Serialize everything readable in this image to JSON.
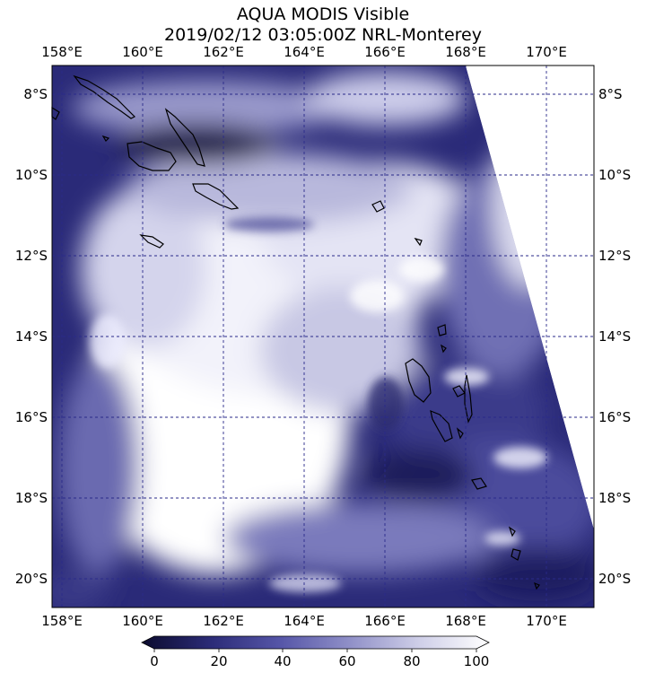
{
  "title": {
    "line1": "AQUA MODIS Visible",
    "line2": "2019/02/12 03:05:00Z NRL-Monterey"
  },
  "map": {
    "lon_range": [
      157.95,
      171.15
    ],
    "lat_range": [
      -20.75,
      -7.35
    ],
    "lon_ticks": [
      "158°E",
      "160°E",
      "162°E",
      "164°E",
      "166°E",
      "168°E",
      "170°E"
    ],
    "lat_ticks": [
      "8°S",
      "10°S",
      "12°S",
      "14°S",
      "16°S",
      "18°S",
      "20°S"
    ],
    "gridline_color": "#2a2a8a",
    "land_outline_color": "#000000"
  },
  "colorbar": {
    "ticks": [
      "0",
      "20",
      "40",
      "60",
      "80",
      "100"
    ],
    "min": 0,
    "max": 100,
    "colors": [
      "#0b0b2e",
      "#2c2c78",
      "#5656a8",
      "#9090c8",
      "#cfcfe8",
      "#ffffff"
    ]
  },
  "colors": {
    "dark_ocean": "#1a1a5a",
    "cloud": "#ffffff"
  }
}
